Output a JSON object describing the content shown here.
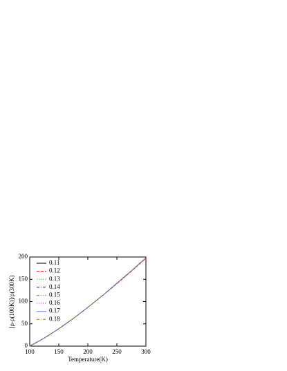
{
  "chart_data": {
    "type": "line",
    "x_label": "Temperature(K)",
    "y_label": "[ρ-ρ(100K)]/ρ(300K)",
    "x": [
      100,
      125,
      150,
      175,
      200,
      225,
      250,
      275,
      300
    ],
    "xlim": [
      100,
      300
    ],
    "xticks": [
      100,
      150,
      200,
      250,
      300
    ],
    "ylim": [
      0,
      200
    ],
    "yticks": [
      0,
      50,
      100,
      150,
      200
    ],
    "legend": "upper left",
    "series": [
      {
        "name": "0.11",
        "color": "#000000",
        "dash": "solid",
        "values": [
          0,
          18,
          39,
          62,
          87,
          113,
          141,
          169,
          198
        ]
      },
      {
        "name": "0.12",
        "color": "#ff0000",
        "dash": "dashed",
        "values": [
          0,
          18,
          39,
          62,
          87,
          113,
          140,
          168,
          197
        ]
      },
      {
        "name": "0.13",
        "color": "#00cc00",
        "dash": "dotted",
        "values": [
          0,
          18,
          39,
          62,
          87,
          113,
          141,
          169,
          198
        ]
      },
      {
        "name": "0.14",
        "color": "#0000ff",
        "dash": "dashdot",
        "values": [
          0,
          18,
          39,
          62,
          87,
          113,
          141,
          169,
          198
        ]
      },
      {
        "name": "0.15",
        "color": "#00cccc",
        "dash": "dashdotdot",
        "values": [
          0,
          18,
          39,
          62,
          87,
          113,
          141,
          169,
          198
        ]
      },
      {
        "name": "0.16",
        "color": "#ff00ff",
        "dash": "dotted",
        "values": [
          0,
          18,
          39,
          62,
          87,
          113,
          141,
          169,
          198
        ]
      },
      {
        "name": "0.17",
        "color": "#8080ff",
        "dash": "solid",
        "values": [
          0,
          18,
          39,
          62,
          87,
          113,
          141,
          169,
          198
        ]
      },
      {
        "name": "0.18",
        "color": "#808000",
        "dash": "dashdot",
        "values": [
          0,
          18,
          39,
          62,
          87,
          113,
          141,
          169,
          198
        ]
      }
    ]
  }
}
